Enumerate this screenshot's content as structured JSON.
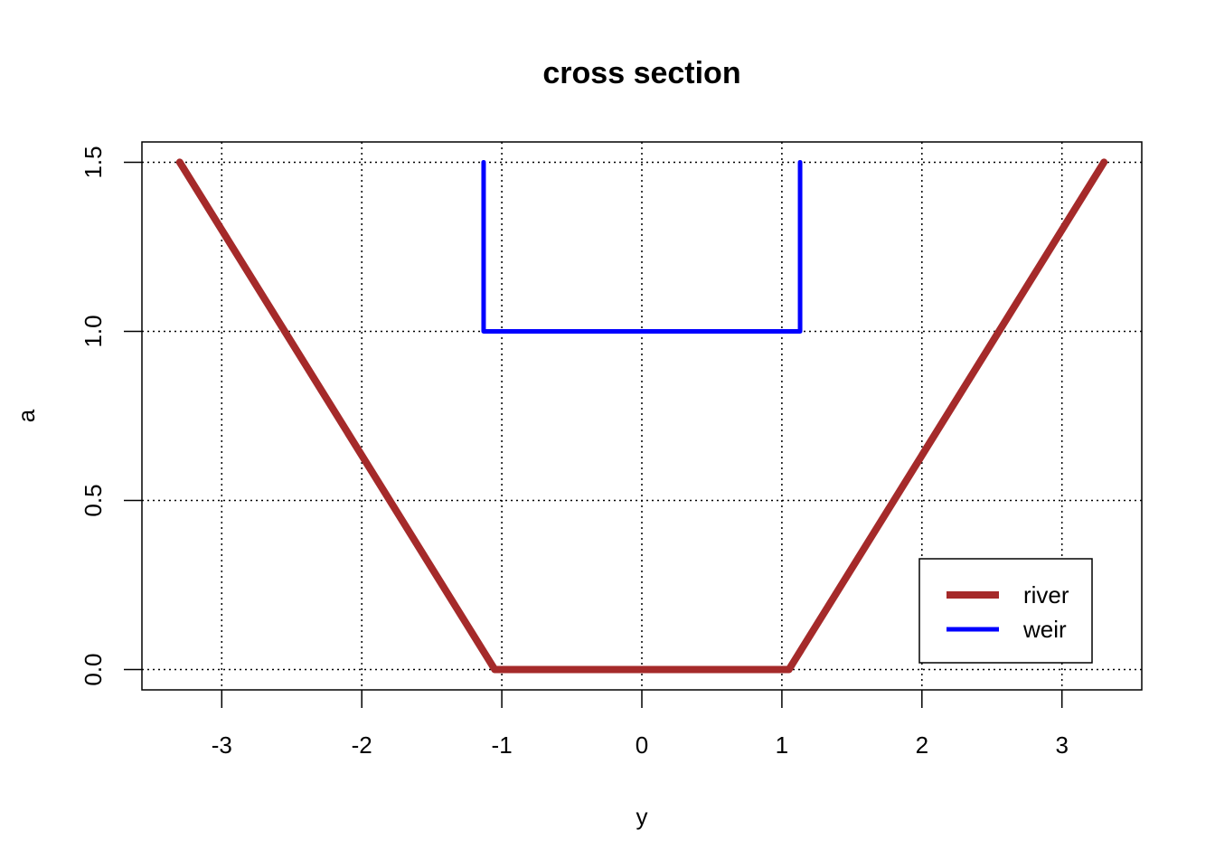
{
  "chart_data": {
    "type": "line",
    "title": "cross section",
    "xlabel": "y",
    "ylabel": "a",
    "xlim": [
      -3.57,
      3.57
    ],
    "ylim": [
      -0.06,
      1.56
    ],
    "xticks": [
      -3,
      -2,
      -1,
      0,
      1,
      2,
      3
    ],
    "xtick_labels": [
      "-3",
      "-2",
      "-1",
      "0",
      "1",
      "2",
      "3"
    ],
    "yticks": [
      0,
      0.5,
      1,
      1.5
    ],
    "ytick_labels": [
      "0.0",
      "0.5",
      "1.0",
      "1.5"
    ],
    "grid": true,
    "grid_style": "dotted",
    "legend_position": "bottom-right",
    "series": [
      {
        "name": "river",
        "color": "#A52A2A",
        "x": [
          -3.3,
          -1.05,
          1.05,
          3.3
        ],
        "y": [
          1.5,
          0.0,
          0.0,
          1.5
        ]
      },
      {
        "name": "weir",
        "color": "#0000FF",
        "x": [
          -1.13,
          -1.13,
          1.13,
          1.13
        ],
        "y": [
          1.5,
          1.0,
          1.0,
          1.5
        ]
      }
    ]
  }
}
